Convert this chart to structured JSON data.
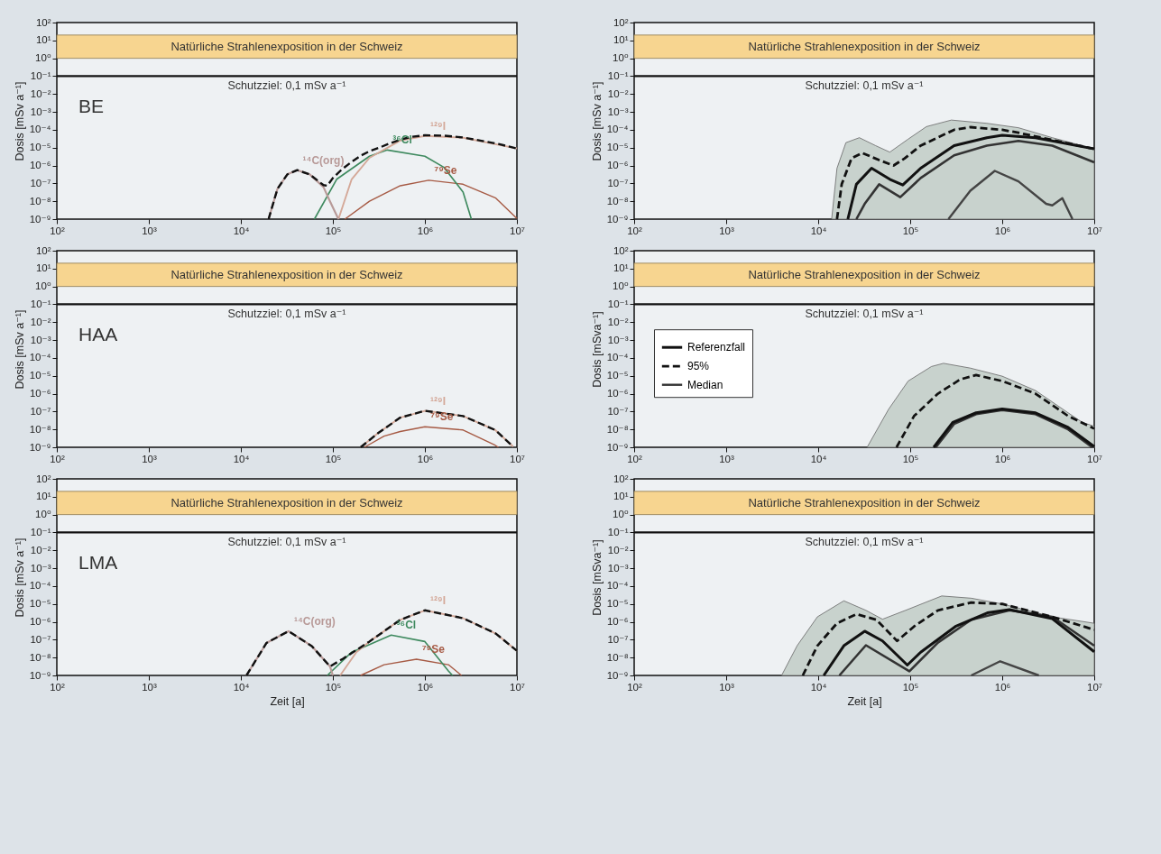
{
  "chart_data": [
    {
      "type": "line",
      "ylabel": "Dosis [mSv a⁻¹]",
      "log": "xy",
      "xlim": [
        100,
        10000000
      ],
      "ylim": [
        1e-09,
        100
      ],
      "xticks": [
        {
          "value": 100,
          "label": "10²"
        },
        {
          "value": 1000,
          "label": "10³"
        },
        {
          "value": 10000,
          "label": "10⁴"
        },
        {
          "value": 100000,
          "label": "10⁵"
        },
        {
          "value": 1000000,
          "label": "10⁶"
        },
        {
          "value": 10000000,
          "label": "10⁷"
        }
      ],
      "yticks": [
        {
          "value": 100,
          "label": "10²"
        },
        {
          "value": 10,
          "label": "10¹"
        },
        {
          "value": 1,
          "label": "10⁰"
        },
        {
          "value": 0.1,
          "label": "10⁻¹"
        },
        {
          "value": 0.01,
          "label": "10⁻²"
        },
        {
          "value": 0.001,
          "label": "10⁻³"
        },
        {
          "value": 0.0001,
          "label": "10⁻⁴"
        },
        {
          "value": 1e-05,
          "label": "10⁻⁵"
        },
        {
          "value": 1e-06,
          "label": "10⁻⁶"
        },
        {
          "value": 1e-07,
          "label": "10⁻⁷"
        },
        {
          "value": 1e-08,
          "label": "10⁻⁸"
        },
        {
          "value": 1e-09,
          "label": "10⁻⁹"
        }
      ],
      "bands": [
        {
          "axis": "y",
          "from": 1,
          "to": 20,
          "label": "Natürliche Strahlenexposition in der Schweiz",
          "color": "#f7d590"
        }
      ],
      "ref_lines": [
        {
          "axis": "y",
          "value": 0.1,
          "label": "Schutzziel: 0,1 mSv a⁻¹",
          "color": "#111111"
        }
      ],
      "annotations": [
        "BE"
      ],
      "series": [
        {
          "color": "#111111",
          "line_style": "dashed",
          "x": [
            20000,
            25000,
            32000,
            41000,
            56000,
            79000,
            87000,
            100000,
            126000,
            160000,
            200000,
            250000,
            320000,
            400000,
            540000,
            710000,
            1000000,
            1600000,
            2600000,
            4000000,
            6300000,
            10000000
          ],
          "values": [
            1e-09,
            5e-08,
            3.2e-07,
            5.5e-07,
            3.2e-07,
            8e-08,
            7.4e-08,
            2e-07,
            6.3e-07,
            1.6e-06,
            3.5e-06,
            6.3e-06,
            1e-05,
            1.6e-05,
            2.8e-05,
            4e-05,
            4.9e-05,
            4.7e-05,
            3.7e-05,
            2.5e-05,
            1.6e-05,
            9e-06
          ]
        },
        {
          "name": "¹⁴C(org)",
          "color": "#b89a98",
          "x": [
            20000,
            25000,
            32000,
            41000,
            56000,
            79000,
            93000,
            115000
          ],
          "values": [
            1e-09,
            5e-08,
            3.2e-07,
            5.5e-07,
            3.2e-07,
            6.3e-08,
            1e-08,
            1e-09
          ]
        },
        {
          "name": "¹²⁹I",
          "color": "#d4a898",
          "x": [
            115000,
            160000,
            250000,
            540000,
            1000000,
            2600000,
            10000000
          ],
          "values": [
            1e-09,
            1.7e-07,
            2.7e-06,
            2.5e-05,
            4.5e-05,
            3.6e-05,
            9e-06
          ]
        },
        {
          "name": "³⁶Cl",
          "color": "#3f8a5f",
          "x": [
            63000,
            110000,
            250000,
            390000,
            1000000,
            1600000,
            2600000,
            3200000
          ],
          "values": [
            1e-09,
            1.7e-07,
            3.3e-06,
            7.4e-06,
            3.3e-06,
            8.1e-07,
            3.3e-08,
            1e-09
          ]
        },
        {
          "name": "⁷⁹Se",
          "color": "#a65a44",
          "x": [
            135000,
            250000,
            540000,
            1100000,
            2600000,
            5900000,
            10000000
          ],
          "values": [
            1e-09,
            1e-08,
            7.4e-08,
            1.5e-07,
            9e-08,
            1.5e-08,
            1.1e-09
          ]
        }
      ]
    },
    {
      "type": "line",
      "ylabel": "Dosis [mSv a⁻¹]",
      "log": "xy",
      "xlim": [
        100,
        10000000
      ],
      "ylim": [
        1e-09,
        100
      ],
      "xticks": [
        {
          "value": 100,
          "label": "10²"
        },
        {
          "value": 1000,
          "label": "10³"
        },
        {
          "value": 10000,
          "label": "10⁴"
        },
        {
          "value": 100000,
          "label": "10⁵"
        },
        {
          "value": 1000000,
          "label": "10⁶"
        },
        {
          "value": 10000000,
          "label": "10⁷"
        }
      ],
      "yticks": [
        {
          "value": 100,
          "label": "10²"
        },
        {
          "value": 10,
          "label": "10¹"
        },
        {
          "value": 1,
          "label": "10⁰"
        },
        {
          "value": 0.1,
          "label": "10⁻¹"
        },
        {
          "value": 0.01,
          "label": "10⁻²"
        },
        {
          "value": 0.001,
          "label": "10⁻³"
        },
        {
          "value": 0.0001,
          "label": "10⁻⁴"
        },
        {
          "value": 1e-05,
          "label": "10⁻⁵"
        },
        {
          "value": 1e-06,
          "label": "10⁻⁶"
        },
        {
          "value": 1e-07,
          "label": "10⁻⁷"
        },
        {
          "value": 1e-08,
          "label": "10⁻⁸"
        },
        {
          "value": 1e-09,
          "label": "10⁻⁹"
        }
      ],
      "bands": [
        {
          "axis": "y",
          "from": 1,
          "to": 20,
          "label": "Natürliche Strahlenexposition in der Schweiz",
          "color": "#f7d590"
        }
      ],
      "ref_lines": [
        {
          "axis": "y",
          "value": 0.1,
          "label": "Schutzziel: 0,1 mSv a⁻¹",
          "color": "#111111"
        }
      ],
      "series": [
        {
          "color": "#111111",
          "x": [
            21000,
            26000,
            38000,
            60000,
            83000,
            130000,
            300000,
            680000,
            1000000,
            2300000,
            10000000
          ],
          "values": [
            1e-09,
            8.9e-08,
            7.1e-07,
            1.7e-07,
            8.1e-08,
            7.1e-07,
            1.3e-05,
            3.6e-05,
            4.9e-05,
            3.6e-05,
            8.5e-06
          ]
        },
        {
          "color": "#111111",
          "line_style": "dashed",
          "x": [
            16000,
            18000,
            23000,
            30000,
            46000,
            66000,
            87000,
            130000,
            300000,
            450000,
            1000000,
            1500000,
            10000000
          ],
          "values": [
            1e-09,
            8.9e-08,
            2.5e-06,
            5.1e-06,
            2e-06,
            1e-06,
            2.5e-06,
            1.3e-05,
            0.0001,
            0.00014,
            0.0001,
            6.8e-05,
            8.5e-06
          ]
        },
        {
          "color": "#333333",
          "x": [
            26000,
            32000,
            46000,
            78000,
            130000,
            300000,
            680000,
            1500000,
            3500000,
            10000000
          ],
          "values": [
            1e-09,
            7.2e-09,
            8.9e-08,
            1.7e-08,
            2e-07,
            3.7e-06,
            1.3e-05,
            2.4e-05,
            1.3e-05,
            1.5e-06
          ]
        },
        {
          "color": "#444444",
          "x": [
            260000,
            450000,
            830000,
            1500000,
            3000000,
            3500000,
            4500000,
            5800000
          ],
          "values": [
            1e-09,
            3.9e-08,
            5e-07,
            1.3e-07,
            7.2e-09,
            5.9e-09,
            1.5e-08,
            1e-09
          ]
        },
        {
          "type": "area",
          "color": "#c8d2cd",
          "x": [
            14000,
            16000,
            20000,
            28000,
            42000,
            60000,
            95000,
            150000,
            280000,
            680000,
            1500000,
            3500000,
            10000000
          ],
          "values": [
            1e-09,
            7e-07,
            1.9e-05,
            3.6e-05,
            1.3e-05,
            5.6e-06,
            3e-05,
            0.00015,
            0.00035,
            0.00023,
            0.00013,
            3.6e-05,
            8.5e-06
          ]
        }
      ]
    },
    {
      "type": "line",
      "ylabel": "Dosis [mSv a⁻¹]",
      "log": "xy",
      "xlim": [
        100,
        10000000
      ],
      "ylim": [
        1e-09,
        100
      ],
      "xticks": [
        {
          "value": 100,
          "label": "10²"
        },
        {
          "value": 1000,
          "label": "10³"
        },
        {
          "value": 10000,
          "label": "10⁴"
        },
        {
          "value": 100000,
          "label": "10⁵"
        },
        {
          "value": 1000000,
          "label": "10⁶"
        },
        {
          "value": 10000000,
          "label": "10⁷"
        }
      ],
      "yticks": [
        {
          "value": 100,
          "label": "10²"
        },
        {
          "value": 10,
          "label": "10¹"
        },
        {
          "value": 1,
          "label": "10⁰"
        },
        {
          "value": 0.1,
          "label": "10⁻¹"
        },
        {
          "value": 0.01,
          "label": "10⁻²"
        },
        {
          "value": 0.001,
          "label": "10⁻³"
        },
        {
          "value": 0.0001,
          "label": "10⁻⁴"
        },
        {
          "value": 1e-05,
          "label": "10⁻⁵"
        },
        {
          "value": 1e-06,
          "label": "10⁻⁶"
        },
        {
          "value": 1e-07,
          "label": "10⁻⁷"
        },
        {
          "value": 1e-08,
          "label": "10⁻⁸"
        },
        {
          "value": 1e-09,
          "label": "10⁻⁹"
        }
      ],
      "bands": [
        {
          "axis": "y",
          "from": 1,
          "to": 20,
          "label": "Natürliche Strahlenexposition in der Schweiz",
          "color": "#f7d590"
        }
      ],
      "ref_lines": [
        {
          "axis": "y",
          "value": 0.1,
          "label": "Schutzziel: 0,1 mSv a⁻¹",
          "color": "#111111"
        }
      ],
      "annotations": [
        "HAA"
      ],
      "series": [
        {
          "color": "#111111",
          "line_style": "dashed",
          "x": [
            200000,
            310000,
            540000,
            1000000,
            2600000,
            5800000,
            9100000
          ],
          "values": [
            1e-09,
            6.2e-09,
            4.6e-08,
            1.1e-07,
            5.6e-08,
            9.3e-09,
            1.1e-09
          ]
        },
        {
          "name": "¹²⁹I",
          "color": "#d4a898",
          "x": [
            200000,
            310000,
            540000,
            1000000,
            2600000,
            5800000,
            9100000
          ],
          "values": [
            1e-09,
            6.2e-09,
            4.6e-08,
            1.1e-07,
            5.6e-08,
            9.3e-09,
            1.1e-09
          ]
        },
        {
          "name": "⁷⁹Se",
          "color": "#a65a44",
          "x": [
            220000,
            360000,
            540000,
            1000000,
            2600000,
            5800000,
            6300000
          ],
          "values": [
            1e-09,
            4.2e-09,
            7.6e-09,
            1.4e-08,
            9.3e-09,
            1.3e-09,
            1e-09
          ]
        }
      ]
    },
    {
      "type": "line",
      "ylabel": "Dosis [mSva⁻¹]",
      "log": "xy",
      "xlim": [
        100,
        10000000
      ],
      "ylim": [
        1e-09,
        100
      ],
      "legend": "left",
      "xticks": [
        {
          "value": 100,
          "label": "10²"
        },
        {
          "value": 1000,
          "label": "10³"
        },
        {
          "value": 10000,
          "label": "10⁴"
        },
        {
          "value": 100000,
          "label": "10⁵"
        },
        {
          "value": 1000000,
          "label": "10⁶"
        },
        {
          "value": 10000000,
          "label": "10⁷"
        }
      ],
      "yticks": [
        {
          "value": 100,
          "label": "10²"
        },
        {
          "value": 10,
          "label": "10¹"
        },
        {
          "value": 1,
          "label": "10⁰"
        },
        {
          "value": 0.1,
          "label": "10⁻¹"
        },
        {
          "value": 0.01,
          "label": "10⁻²"
        },
        {
          "value": 0.001,
          "label": "10⁻³"
        },
        {
          "value": 0.0001,
          "label": "10⁻⁴"
        },
        {
          "value": 1e-05,
          "label": "10⁻⁵"
        },
        {
          "value": 1e-06,
          "label": "10⁻⁶"
        },
        {
          "value": 1e-07,
          "label": "10⁻⁷"
        },
        {
          "value": 1e-08,
          "label": "10⁻⁸"
        },
        {
          "value": 1e-09,
          "label": "10⁻⁹"
        }
      ],
      "bands": [
        {
          "axis": "y",
          "from": 1,
          "to": 20,
          "label": "Natürliche Strahlenexposition in der Schweiz",
          "color": "#f7d590"
        }
      ],
      "ref_lines": [
        {
          "axis": "y",
          "value": 0.1,
          "label": "Schutzziel: 0,1 mSv a⁻¹",
          "color": "#111111"
        }
      ],
      "series": [
        {
          "name": "Referenzfall",
          "color": "#111111",
          "x": [
            180000,
            290000,
            520000,
            1000000,
            2300000,
            5200000,
            10000000
          ],
          "values": [
            1e-09,
            2.5e-08,
            8.5e-08,
            1.4e-07,
            8.5e-08,
            1.3e-08,
            1.1e-09
          ]
        },
        {
          "name": "95%",
          "color": "#111111",
          "line_style": "dashed",
          "x": [
            71000,
            110000,
            200000,
            350000,
            520000,
            1000000,
            2300000,
            5200000,
            10000000
          ],
          "values": [
            1e-09,
            5.6e-08,
            1e-06,
            6.3e-06,
            1.1e-05,
            5.1e-06,
            1e-06,
            5.6e-08,
            1.1e-08
          ]
        },
        {
          "name": "Median",
          "color": "#333333",
          "x": [
            190000,
            300000,
            520000,
            1000000,
            2300000,
            5200000,
            9500000
          ],
          "values": [
            1e-09,
            2e-08,
            7e-08,
            1.2e-07,
            7e-08,
            1e-08,
            1e-09
          ]
        },
        {
          "type": "area",
          "color": "#c8d2cd",
          "x": [
            34000,
            58000,
            95000,
            170000,
            230000,
            450000,
            1000000,
            2300000,
            5200000,
            7400000,
            10000000
          ],
          "values": [
            1e-09,
            1.3e-07,
            5.1e-06,
            3.3e-05,
            5e-05,
            2.7e-05,
            9.5e-06,
            1.5e-06,
            8.5e-08,
            2.5e-08,
            1.5e-08
          ]
        }
      ]
    },
    {
      "type": "line",
      "ylabel": "Dosis [mSv a⁻¹]",
      "xlabel": "Zeit [a]",
      "log": "xy",
      "xlim": [
        100,
        10000000
      ],
      "ylim": [
        1e-09,
        100
      ],
      "xticks": [
        {
          "value": 100,
          "label": "10²"
        },
        {
          "value": 1000,
          "label": "10³"
        },
        {
          "value": 10000,
          "label": "10⁴"
        },
        {
          "value": 100000,
          "label": "10⁵"
        },
        {
          "value": 1000000,
          "label": "10⁶"
        },
        {
          "value": 10000000,
          "label": "10⁷"
        }
      ],
      "yticks": [
        {
          "value": 100,
          "label": "10²"
        },
        {
          "value": 10,
          "label": "10¹"
        },
        {
          "value": 1,
          "label": "10⁰"
        },
        {
          "value": 0.1,
          "label": "10⁻¹"
        },
        {
          "value": 0.01,
          "label": "10⁻²"
        },
        {
          "value": 0.001,
          "label": "10⁻³"
        },
        {
          "value": 0.0001,
          "label": "10⁻⁴"
        },
        {
          "value": 1e-05,
          "label": "10⁻⁵"
        },
        {
          "value": 1e-06,
          "label": "10⁻⁶"
        },
        {
          "value": 1e-07,
          "label": "10⁻⁷"
        },
        {
          "value": 1e-08,
          "label": "10⁻⁸"
        },
        {
          "value": 1e-09,
          "label": "10⁻⁹"
        }
      ],
      "bands": [
        {
          "axis": "y",
          "from": 1,
          "to": 20,
          "label": "Natürliche Strahlenexposition in der Schweiz",
          "color": "#f7d590"
        }
      ],
      "ref_lines": [
        {
          "axis": "y",
          "value": 0.1,
          "label": "Schutzziel: 0,1 mSv a⁻¹",
          "color": "#111111"
        }
      ],
      "annotations": [
        "LMA"
      ],
      "series": [
        {
          "color": "#111111",
          "line_style": "dashed",
          "x": [
            11500,
            19000,
            33000,
            59000,
            93000,
            130000,
            250000,
            540000,
            1000000,
            2600000,
            5900000,
            10000000
          ],
          "values": [
            1e-09,
            6.6e-08,
            3e-07,
            4.4e-08,
            3.2e-09,
            8.9e-09,
            7.9e-08,
            1.3e-06,
            4.4e-06,
            1.6e-06,
            2.2e-07,
            2.4e-08
          ]
        },
        {
          "name": "¹⁴C(org)",
          "color": "#b89a98",
          "x": [
            11500,
            19000,
            33000,
            59000,
            93000,
            100000
          ],
          "values": [
            1e-09,
            6.6e-08,
            3e-07,
            4.4e-08,
            3.2e-09,
            1e-09
          ]
        },
        {
          "name": "¹²⁹I",
          "color": "#d4a898",
          "x": [
            120000,
            180000,
            250000,
            540000,
            1000000,
            2600000,
            5900000,
            10000000
          ],
          "values": [
            1e-09,
            2e-08,
            7.9e-08,
            1.3e-06,
            4.4e-06,
            1.6e-06,
            2.2e-07,
            2.4e-08
          ]
        },
        {
          "name": "³⁶Cl",
          "color": "#3f8a5f",
          "x": [
            87000,
            160000,
            250000,
            430000,
            1000000,
            1800000,
            2000000
          ],
          "values": [
            1e-09,
            2e-08,
            5.4e-08,
            1.8e-07,
            7.9e-08,
            1.8e-09,
            1e-09
          ]
        },
        {
          "name": "⁷⁹Se",
          "color": "#a65a44",
          "x": [
            200000,
            360000,
            810000,
            1800000,
            2500000
          ],
          "values": [
            1e-09,
            4e-09,
            8.1e-09,
            4e-09,
            1e-09
          ]
        }
      ]
    },
    {
      "type": "line",
      "ylabel": "Dosis [mSva⁻¹]",
      "xlabel": "Zeit [a]",
      "log": "xy",
      "xlim": [
        100,
        10000000
      ],
      "ylim": [
        1e-09,
        100
      ],
      "xticks": [
        {
          "value": 100,
          "label": "10²"
        },
        {
          "value": 1000,
          "label": "10³"
        },
        {
          "value": 10000,
          "label": "10⁴"
        },
        {
          "value": 100000,
          "label": "10⁵"
        },
        {
          "value": 1000000,
          "label": "10⁶"
        },
        {
          "value": 10000000,
          "label": "10⁷"
        }
      ],
      "yticks": [
        {
          "value": 100,
          "label": "10²"
        },
        {
          "value": 10,
          "label": "10¹"
        },
        {
          "value": 1,
          "label": "10⁰"
        },
        {
          "value": 0.1,
          "label": "10⁻¹"
        },
        {
          "value": 0.01,
          "label": "10⁻²"
        },
        {
          "value": 0.001,
          "label": "10⁻³"
        },
        {
          "value": 0.0001,
          "label": "10⁻⁴"
        },
        {
          "value": 1e-05,
          "label": "10⁻⁵"
        },
        {
          "value": 1e-06,
          "label": "10⁻⁶"
        },
        {
          "value": 1e-07,
          "label": "10⁻⁷"
        },
        {
          "value": 1e-08,
          "label": "10⁻⁸"
        },
        {
          "value": 1e-09,
          "label": "10⁻⁹"
        }
      ],
      "bands": [
        {
          "axis": "y",
          "from": 1,
          "to": 20,
          "label": "Natürliche Strahlenexposition in der Schweiz",
          "color": "#f7d590"
        }
      ],
      "ref_lines": [
        {
          "axis": "y",
          "value": 0.1,
          "label": "Schutzziel: 0,1 mSv a⁻¹",
          "color": "#111111"
        }
      ],
      "series": [
        {
          "color": "#111111",
          "x": [
            11500,
            19000,
            32000,
            50000,
            93000,
            130000,
            310000,
            690000,
            1200000,
            3500000,
            10000000
          ],
          "values": [
            1e-09,
            4.6e-08,
            3e-07,
            8.5e-08,
            3.8e-09,
            2e-08,
            5.5e-07,
            3.2e-06,
            4.8e-06,
            1.5e-06,
            2.1e-08
          ]
        },
        {
          "color": "#111111",
          "line_style": "dashed",
          "x": [
            6800,
            9800,
            16000,
            26000,
            43000,
            72000,
            110000,
            200000,
            460000,
            1000000,
            3500000,
            10000000
          ],
          "values": [
            1e-09,
            4.6e-08,
            8.3e-07,
            2.7e-06,
            1.3e-06,
            8.5e-08,
            5.5e-07,
            4.4e-06,
            1.2e-05,
            1e-05,
            1.9e-06,
            3.6e-07
          ]
        },
        {
          "color": "#333333",
          "x": [
            17000,
            33000,
            98000,
            200000,
            460000,
            1200000,
            3500000,
            10000000
          ],
          "values": [
            1e-09,
            4.9e-08,
            1.7e-09,
            6.9e-08,
            1.3e-06,
            4.4e-06,
            1.9e-06,
            4.6e-08
          ]
        },
        {
          "color": "#444444",
          "x": [
            460000,
            950000,
            2500000
          ],
          "values": [
            1e-09,
            6.2e-09,
            1e-09
          ]
        },
        {
          "type": "area",
          "color": "#c8d2cd",
          "x": [
            4000,
            5900,
            9800,
            19000,
            33000,
            50000,
            89000,
            220000,
            460000,
            1000000,
            3500000,
            10000000
          ],
          "values": [
            1e-09,
            4.6e-08,
            1.9e-06,
            1.5e-05,
            4.4e-06,
            1.4e-06,
            4.4e-06,
            2.8e-05,
            2.1e-05,
            1e-05,
            1.9e-06,
            8.3e-07
          ]
        }
      ]
    }
  ]
}
